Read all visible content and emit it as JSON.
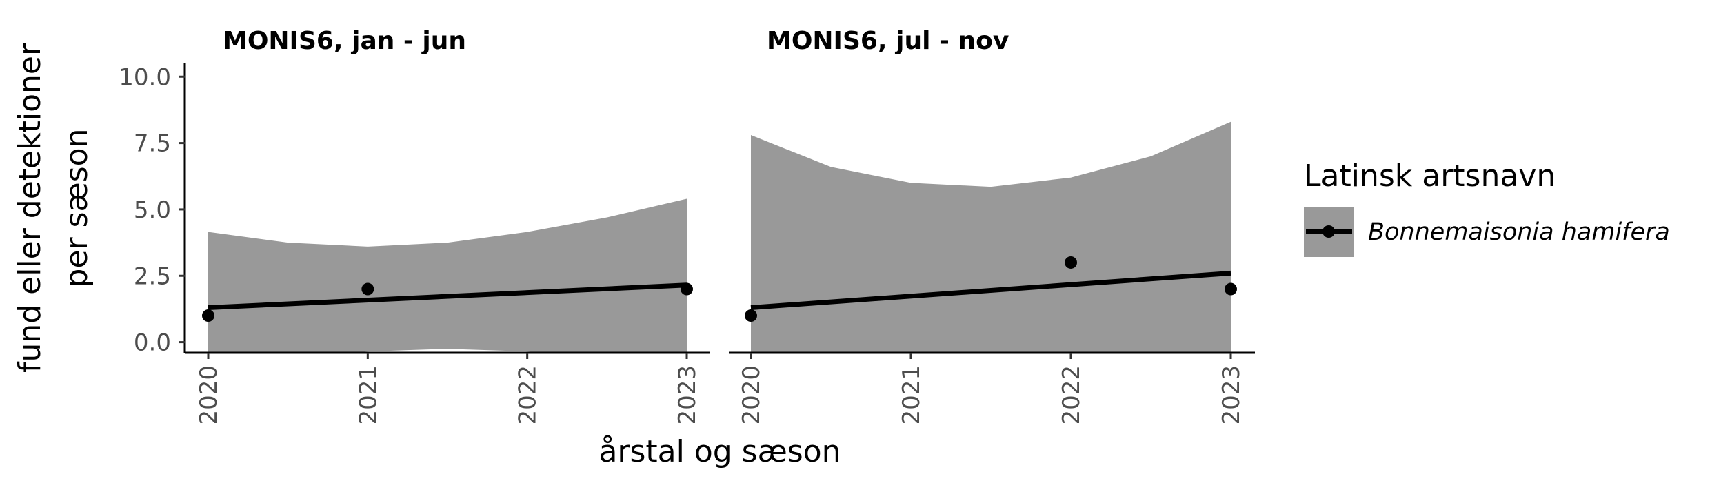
{
  "chart_data": {
    "type": "line",
    "ylabel": [
      "fund eller detektioner",
      "per sæson"
    ],
    "xlabel": "årstal og sæson",
    "ylim": [
      -0.4,
      10.5
    ],
    "y_ticks": [
      "0.0",
      "2.5",
      "5.0",
      "7.5",
      "10.0"
    ],
    "x_ticks": [
      "2020",
      "2021",
      "2022",
      "2023"
    ],
    "grid": false,
    "legend": {
      "title": "Latinsk artsnavn",
      "entries": [
        "Bonnemaisonia hamifera"
      ],
      "placement": "right"
    },
    "colors": {
      "line": "#000000",
      "ribbon": "#999999",
      "points": "#000000",
      "axis": "#000000",
      "tick_text": "#4d4d4d"
    },
    "panels": [
      {
        "title": "MONIS6, jan - jun",
        "points": [
          {
            "x": 2020,
            "y": 1
          },
          {
            "x": 2021,
            "y": 2
          },
          {
            "x": 2023,
            "y": 2
          }
        ],
        "fit": {
          "x": [
            2020,
            2023
          ],
          "y": [
            1.3,
            2.15
          ]
        },
        "ribbon": {
          "x": [
            2020,
            2020.5,
            2021,
            2021.5,
            2022,
            2022.5,
            2023
          ],
          "upper": [
            4.15,
            3.75,
            3.6,
            3.75,
            4.15,
            4.7,
            5.4
          ],
          "lower": [
            -0.7,
            -0.6,
            -0.35,
            -0.25,
            -0.35,
            -0.6,
            -0.7
          ]
        }
      },
      {
        "title": "MONIS6, jul - nov",
        "points": [
          {
            "x": 2020,
            "y": 1
          },
          {
            "x": 2022,
            "y": 3
          },
          {
            "x": 2023,
            "y": 2
          }
        ],
        "fit": {
          "x": [
            2020,
            2023
          ],
          "y": [
            1.3,
            2.6
          ]
        },
        "ribbon": {
          "x": [
            2020,
            2020.5,
            2021,
            2021.5,
            2022,
            2022.5,
            2023
          ],
          "upper": [
            7.8,
            6.6,
            6.0,
            5.85,
            6.2,
            7.0,
            8.3
          ],
          "lower": [
            -0.7,
            -0.7,
            -0.7,
            -0.7,
            -0.7,
            -0.7,
            -0.7
          ]
        }
      }
    ]
  }
}
